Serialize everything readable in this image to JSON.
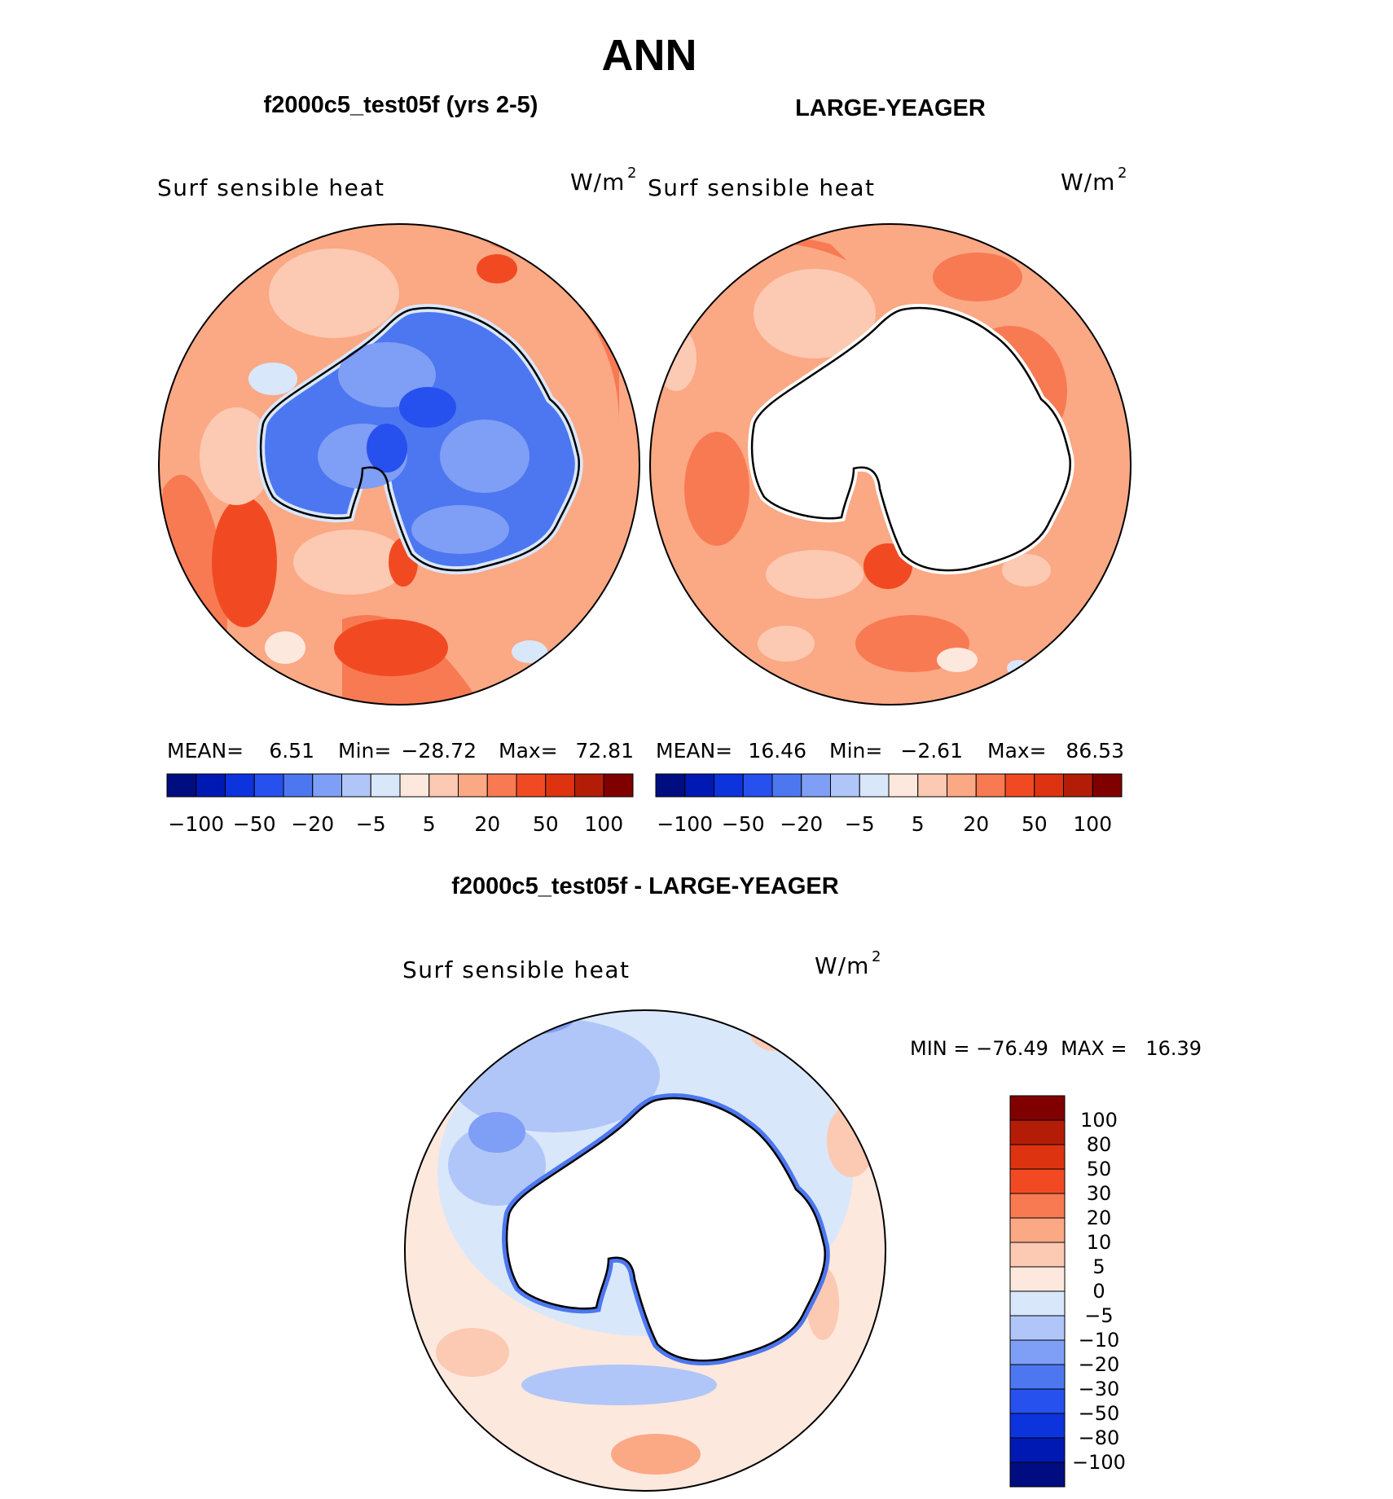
{
  "title": "ANN",
  "panels": [
    {
      "heading": "f2000c5_test05f (yrs 2-5)",
      "variable": "Surf sensible heat",
      "units": "W/m",
      "units_exp": "2",
      "stats": {
        "mean_label": "MEAN=",
        "mean": "6.51",
        "min_label": "Min=",
        "min": "−28.72",
        "max_label": "Max=",
        "max": "72.81"
      }
    },
    {
      "heading": "LARGE-YEAGER",
      "variable": "Surf sensible heat",
      "units": "W/m",
      "units_exp": "2",
      "stats": {
        "mean_label": "MEAN=",
        "mean": "16.46",
        "min_label": "Min=",
        "min": "−2.61",
        "max_label": "Max=",
        "max": "86.53"
      }
    }
  ],
  "diff_panel": {
    "heading": "f2000c5_test05f - LARGE-YEAGER",
    "variable": "Surf sensible heat",
    "units": "W/m",
    "units_exp": "2",
    "minmax": "MIN = −76.49  MAX =   16.39"
  },
  "colorbar_top": {
    "colors": [
      "#000d80",
      "#0019b3",
      "#0d33dd",
      "#2651ee",
      "#4d77f0",
      "#7f9ef5",
      "#b0c6f8",
      "#d9e7fb",
      "#fde8dd",
      "#fcc9b2",
      "#fba885",
      "#f87a52",
      "#f14a22",
      "#dd3310",
      "#b31d08",
      "#800000"
    ],
    "labels": [
      "−100",
      "−50",
      "−20",
      "−5",
      "5",
      "20",
      "50",
      "100"
    ]
  },
  "colorbar_diff": {
    "colors": [
      "#800000",
      "#b31d08",
      "#dd3310",
      "#f14a22",
      "#f87a52",
      "#fba885",
      "#fcc9b2",
      "#fde8dd",
      "#d9e7fb",
      "#b0c6f8",
      "#7f9ef5",
      "#4d77f0",
      "#2651ee",
      "#0d33dd",
      "#0019b3",
      "#000d80"
    ],
    "labels": [
      "100",
      "80",
      "50",
      "30",
      "20",
      "10",
      "5",
      "0",
      "−5",
      "−10",
      "−20",
      "−30",
      "−50",
      "−80",
      "−100"
    ]
  },
  "colors": {
    "ocean_top": "#fba885",
    "ocean_diff": "#fde8dd",
    "land_cold": "#4d77f0",
    "coast": "#000000"
  }
}
